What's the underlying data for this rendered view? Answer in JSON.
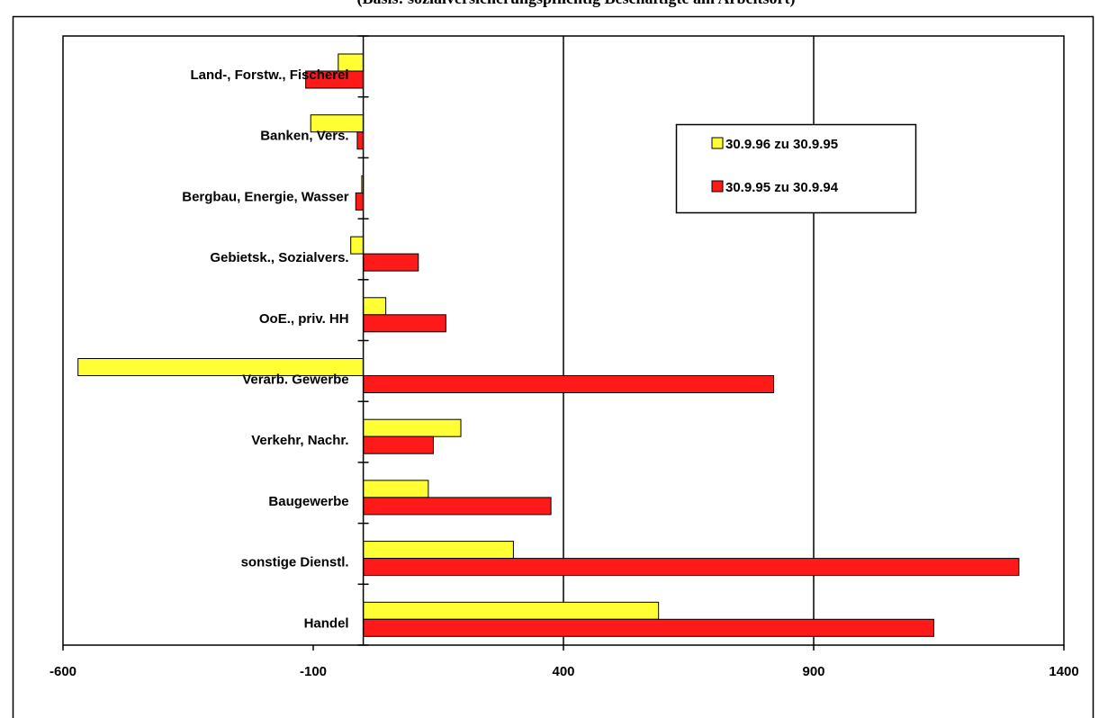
{
  "chart_data": {
    "type": "bar",
    "orientation": "horizontal",
    "title": "(Basis: sozialversicherungspflichtig Beschäftigte am Arbeitsort)",
    "xlabel": "",
    "ylabel": "",
    "xlim": [
      -600,
      1400
    ],
    "x_ticks": [
      "-600",
      "-100",
      "400",
      "900",
      "1400"
    ],
    "grid": "vertical major gridlines at 400 and 900",
    "legend_position": "top-right",
    "categories": [
      "Land-, Forstw., Fischerei",
      "Banken, Vers.",
      "Bergbau, Energie, Wasser",
      "Gebietsk., Sozialvers.",
      "OoE., priv. HH",
      "Verarb. Gewerbe",
      "Verkehr, Nachr.",
      "Baugewerbe",
      "sonstige Dienstl.",
      "Handel"
    ],
    "series": [
      {
        "name": "30.9.96 zu 30.9.95",
        "color": "#ffff33",
        "values": [
          -50,
          -105,
          -3,
          -25,
          45,
          -570,
          195,
          130,
          300,
          590
        ]
      },
      {
        "name": "30.9.95 zu 30.9.94",
        "color": "#ff1a1a",
        "values": [
          -115,
          -12,
          -15,
          110,
          165,
          820,
          140,
          375,
          1310,
          1140
        ]
      }
    ]
  }
}
